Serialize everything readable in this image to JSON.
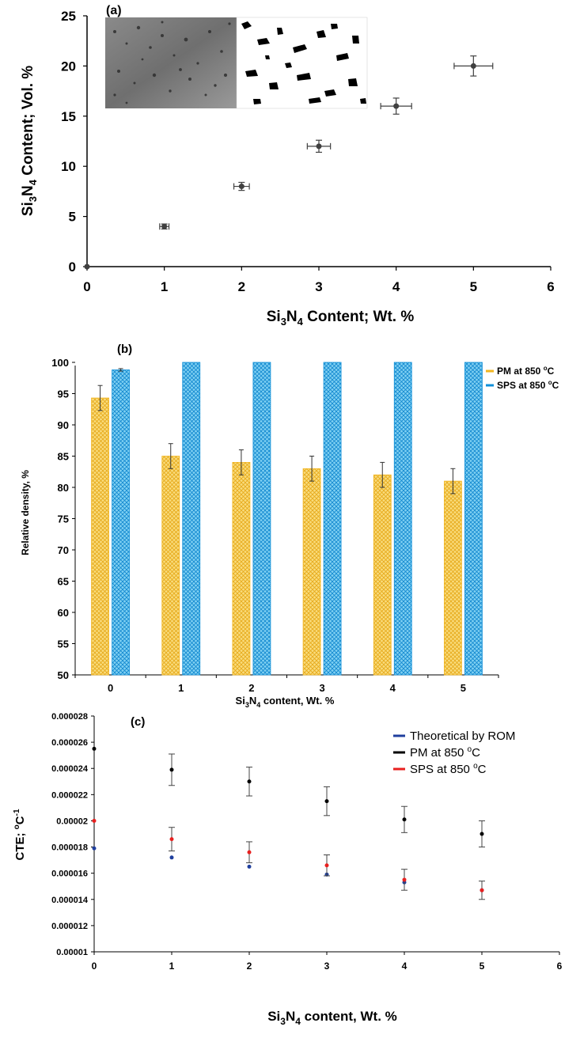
{
  "chart_data": [
    {
      "id": "a",
      "type": "scatter",
      "panel_label": "(a)",
      "xlabel_main": "Si",
      "xlabel_sub": "3",
      "xlabel_main2": "N",
      "xlabel_sub2": "4",
      "xlabel_rest": " Content; Wt. %",
      "ylabel_main": "Si",
      "ylabel_sub": "3",
      "ylabel_main2": "N",
      "ylabel_sub2": "4",
      "ylabel_rest": " Content; Vol. %",
      "xlim": [
        0,
        6
      ],
      "ylim": [
        0,
        25
      ],
      "xticks": [
        "0",
        "1",
        "2",
        "3",
        "4",
        "5",
        "6"
      ],
      "yticks": [
        "0",
        "5",
        "10",
        "15",
        "20",
        "25"
      ],
      "points": [
        {
          "x": 0,
          "y": 0,
          "xerr": 0,
          "yerr": 0
        },
        {
          "x": 1,
          "y": 4,
          "xerr": 0.06,
          "yerr": 0.25
        },
        {
          "x": 2,
          "y": 8,
          "xerr": 0.1,
          "yerr": 0.4
        },
        {
          "x": 3,
          "y": 12,
          "xerr": 0.15,
          "yerr": 0.6
        },
        {
          "x": 4,
          "y": 16,
          "xerr": 0.2,
          "yerr": 0.8
        },
        {
          "x": 5,
          "y": 20,
          "xerr": 0.25,
          "yerr": 1.0
        }
      ],
      "color": "#404040"
    },
    {
      "id": "b",
      "type": "bar",
      "panel_label": "(b)",
      "xlabel_main": "Si",
      "xlabel_sub": "3",
      "xlabel_main2": "N",
      "xlabel_sub2": "4",
      "xlabel_rest": " content, Wt. %",
      "ylabel": "Relative density, %",
      "ylim": [
        50,
        100
      ],
      "yticks": [
        "50",
        "55",
        "60",
        "65",
        "70",
        "75",
        "80",
        "85",
        "90",
        "95",
        "100"
      ],
      "categories": [
        "0",
        "1",
        "2",
        "3",
        "4",
        "5"
      ],
      "series": [
        {
          "name": "PM at 850 oC",
          "legend_main": "PM at 850 ",
          "legend_sup": "o",
          "legend_end": "C",
          "color": "#f2b51f",
          "fill": "#f9dc7c",
          "values": [
            94.3,
            85,
            84,
            83,
            82,
            81
          ],
          "errors": [
            2,
            2,
            2,
            2,
            2,
            2
          ]
        },
        {
          "name": "SPS at 850 oC",
          "legend_main": "SPS at 850 ",
          "legend_sup": "o",
          "legend_end": "C",
          "color": "#0f8fd8",
          "fill": "#6ecaef",
          "values": [
            98.8,
            100,
            100,
            100,
            100,
            100
          ],
          "errors": [
            0.2,
            0,
            0,
            0,
            0,
            0
          ]
        }
      ]
    },
    {
      "id": "c",
      "type": "scatter",
      "panel_label": "(c)",
      "xlabel_main": "Si",
      "xlabel_sub": "3",
      "xlabel_main2": "N",
      "xlabel_sub2": "4",
      "xlabel_rest": " content, Wt. %",
      "ylabel_main": "CTE; ",
      "ylabel_sup": "o",
      "ylabel_mid": "C",
      "ylabel_sup2": "-1",
      "xlim": [
        0,
        6
      ],
      "ylim": [
        1e-05,
        2.8e-05
      ],
      "xticks": [
        "0",
        "1",
        "2",
        "3",
        "4",
        "5",
        "6"
      ],
      "yticks": [
        "0.00001",
        "0.000012",
        "0.000014",
        "0.000016",
        "0.000018",
        "0.00002",
        "0.000022",
        "0.000024",
        "0.000026",
        "0.000028"
      ],
      "series": [
        {
          "name": "Theoretical by ROM",
          "legend_main": "Theoretical by ROM",
          "legend_sup": "",
          "legend_end": "",
          "color": "#1f3f9e",
          "points": [
            {
              "x": 0,
              "y": 1.79e-05,
              "err": 0
            },
            {
              "x": 1,
              "y": 1.72e-05,
              "err": 0
            },
            {
              "x": 2,
              "y": 1.65e-05,
              "err": 0
            },
            {
              "x": 3,
              "y": 1.59e-05,
              "err": 0
            },
            {
              "x": 4,
              "y": 1.53e-05,
              "err": 0
            },
            {
              "x": 5,
              "y": 1.47e-05,
              "err": 0
            }
          ]
        },
        {
          "name": "PM at 850 oC",
          "legend_main": "PM at 850 ",
          "legend_sup": "o",
          "legend_end": "C",
          "color": "#000000",
          "points": [
            {
              "x": 0,
              "y": 2.55e-05,
              "err": 0
            },
            {
              "x": 1,
              "y": 2.39e-05,
              "err": 1.2e-06
            },
            {
              "x": 2,
              "y": 2.3e-05,
              "err": 1.1e-06
            },
            {
              "x": 3,
              "y": 2.15e-05,
              "err": 1.1e-06
            },
            {
              "x": 4,
              "y": 2.01e-05,
              "err": 1e-06
            },
            {
              "x": 5,
              "y": 1.9e-05,
              "err": 1e-06
            }
          ]
        },
        {
          "name": "SPS at 850 oC",
          "legend_main": "SPS at 850 ",
          "legend_sup": "o",
          "legend_end": "C",
          "color": "#e8201f",
          "points": [
            {
              "x": 0,
              "y": 2e-05,
              "err": 0
            },
            {
              "x": 1,
              "y": 1.86e-05,
              "err": 9e-07
            },
            {
              "x": 2,
              "y": 1.76e-05,
              "err": 8e-07
            },
            {
              "x": 3,
              "y": 1.66e-05,
              "err": 8e-07
            },
            {
              "x": 4,
              "y": 1.55e-05,
              "err": 8e-07
            },
            {
              "x": 5,
              "y": 1.47e-05,
              "err": 7e-07
            }
          ]
        }
      ]
    }
  ]
}
